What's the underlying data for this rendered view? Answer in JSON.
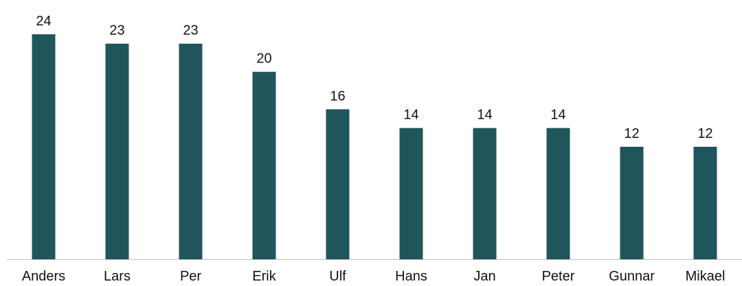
{
  "chart_data": {
    "type": "bar",
    "categories": [
      "Anders",
      "Lars",
      "Per",
      "Erik",
      "Ulf",
      "Hans",
      "Jan",
      "Peter",
      "Gunnar",
      "Mikael"
    ],
    "values": [
      24,
      23,
      23,
      20,
      16,
      14,
      14,
      14,
      12,
      12
    ],
    "title": "",
    "xlabel": "",
    "ylabel": "",
    "ylim": [
      0,
      24
    ],
    "grid": false,
    "data_labels": true,
    "bar_color": "#20555C",
    "axis_color": "#BFBFBF"
  }
}
